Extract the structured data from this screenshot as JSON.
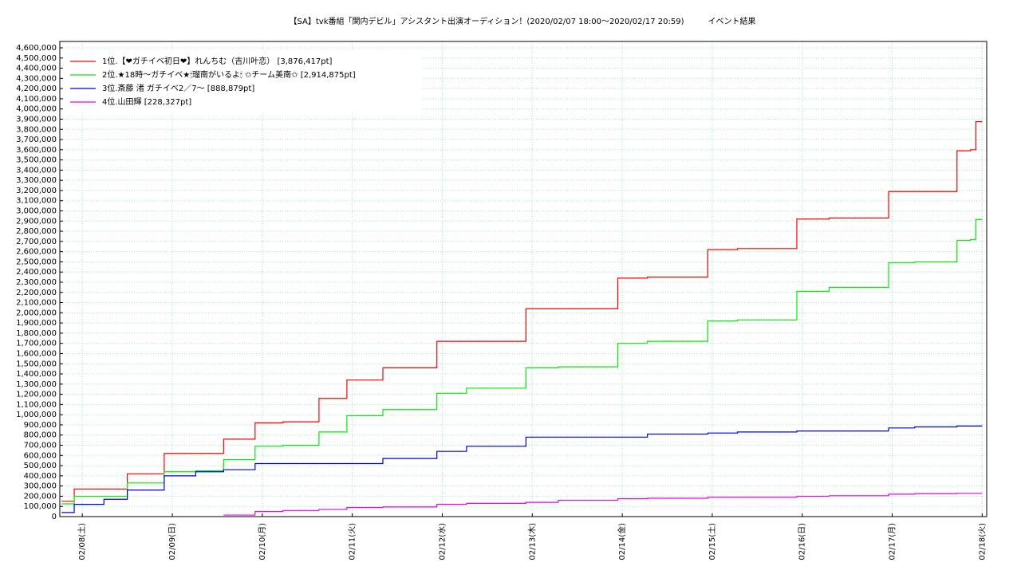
{
  "chart_data": {
    "type": "line",
    "step": true,
    "title": "【SA】tvk番組「関内デビル」アシスタント出演オーディション！(2020/02/07 18:00〜2020/02/17 20:59)　　　イベント結果",
    "x": [
      7.77,
      7.91,
      8.24,
      8.5,
      8.91,
      9.26,
      9.57,
      9.92,
      10.23,
      10.63,
      10.94,
      11.34,
      11.94,
      12.27,
      12.93,
      13.29,
      13.95,
      14.28,
      14.95,
      15.28,
      15.94,
      16.3,
      16.96,
      17.25,
      17.72,
      17.87,
      17.93,
      18.0
    ],
    "series": [
      {
        "name": "1位.【❤ガチイベ初日❤】れんちむ（吉川叶恋） [3,876,417pt]",
        "color": "#ff0000",
        "values": [
          150000,
          270000,
          270000,
          420000,
          620000,
          620000,
          760000,
          920000,
          930000,
          1160000,
          1340000,
          1460000,
          1720000,
          1720000,
          2040000,
          2040000,
          2340000,
          2350000,
          2620000,
          2630000,
          2920000,
          2930000,
          3190000,
          3190000,
          3590000,
          3600000,
          3876417,
          3876417
        ]
      },
      {
        "name": "2位.★18時〜ガチイベ★🕯瑠南がいるよ🕯 ✩チーム美南✩ [2,914,875pt]",
        "color": "#00ee00",
        "values": [
          125000,
          200000,
          200000,
          330000,
          440000,
          450000,
          560000,
          690000,
          700000,
          830000,
          990000,
          1050000,
          1210000,
          1260000,
          1460000,
          1470000,
          1700000,
          1720000,
          1920000,
          1930000,
          2210000,
          2250000,
          2490000,
          2500000,
          2710000,
          2720000,
          2914875,
          2914875
        ]
      },
      {
        "name": "3位.斎藤 渚 ガチイベ2／7〜 [888,879pt]",
        "color": "#0000dd",
        "values": [
          40000,
          120000,
          170000,
          260000,
          400000,
          440000,
          460000,
          520000,
          520000,
          520000,
          520000,
          570000,
          640000,
          690000,
          780000,
          780000,
          780000,
          810000,
          820000,
          830000,
          840000,
          840000,
          870000,
          880000,
          888879,
          888879,
          888879,
          888879
        ]
      },
      {
        "name": "4位.山田輝 [228,327pt]",
        "color": "#ee00ee",
        "values": [
          null,
          null,
          null,
          null,
          null,
          null,
          15000,
          50000,
          60000,
          70000,
          90000,
          95000,
          120000,
          130000,
          140000,
          160000,
          175000,
          180000,
          190000,
          190000,
          200000,
          205000,
          220000,
          225000,
          228327,
          228327,
          228327,
          228327
        ]
      }
    ],
    "xlim": [
      7.75,
      18.05
    ],
    "xticks": [
      {
        "value": 8,
        "label": "02/08(土)"
      },
      {
        "value": 9,
        "label": "02/09(日)"
      },
      {
        "value": 10,
        "label": "02/10(月)"
      },
      {
        "value": 11,
        "label": "02/11(火)"
      },
      {
        "value": 12,
        "label": "02/12(水)"
      },
      {
        "value": 13,
        "label": "02/13(木)"
      },
      {
        "value": 14,
        "label": "02/14(金)"
      },
      {
        "value": 15,
        "label": "02/15(土)"
      },
      {
        "value": 16,
        "label": "02/16(日)"
      },
      {
        "value": 17,
        "label": "02/17(月)"
      },
      {
        "value": 18,
        "label": "02/18(火)"
      }
    ],
    "ylim": [
      0,
      4662500
    ],
    "yticks": [
      0,
      {
        "value": 100000,
        "label": "100,000"
      },
      {
        "value": 200000,
        "label": "200,000"
      },
      {
        "value": 300000,
        "label": "300,000"
      },
      {
        "value": 400000,
        "label": "400,000"
      },
      {
        "value": 500000,
        "label": "500,000"
      },
      {
        "value": 600000,
        "label": "600,000"
      },
      {
        "value": 700000,
        "label": "700,000"
      },
      {
        "value": 800000,
        "label": "800,000"
      },
      {
        "value": 900000,
        "label": "900,000"
      },
      {
        "value": 1000000,
        "label": "1,000,000"
      },
      {
        "value": 1100000,
        "label": "1,100,000"
      },
      {
        "value": 1200000,
        "label": "1,200,000"
      },
      {
        "value": 1300000,
        "label": "1,300,000"
      },
      {
        "value": 1400000,
        "label": "1,400,000"
      },
      {
        "value": 1500000,
        "label": "1,500,000"
      },
      {
        "value": 1600000,
        "label": "1,600,000"
      },
      {
        "value": 1700000,
        "label": "1,700,000"
      },
      {
        "value": 1800000,
        "label": "1,800,000"
      },
      {
        "value": 1900000,
        "label": "1,900,000"
      },
      {
        "value": 2000000,
        "label": "2,000,000"
      },
      {
        "value": 2100000,
        "label": "2,100,000"
      },
      {
        "value": 2200000,
        "label": "2,200,000"
      },
      {
        "value": 2300000,
        "label": "2,300,000"
      },
      {
        "value": 2400000,
        "label": "2,400,000"
      },
      {
        "value": 2500000,
        "label": "2,500,000"
      },
      {
        "value": 2600000,
        "label": "2,600,000"
      },
      {
        "value": 2700000,
        "label": "2,700,000"
      },
      {
        "value": 2800000,
        "label": "2,800,000"
      },
      {
        "value": 2900000,
        "label": "2,900,000"
      },
      {
        "value": 3000000,
        "label": "3,000,000"
      },
      {
        "value": 3100000,
        "label": "3,100,000"
      },
      {
        "value": 3200000,
        "label": "3,200,000"
      },
      {
        "value": 3300000,
        "label": "3,300,000"
      },
      {
        "value": 3400000,
        "label": "3,400,000"
      },
      {
        "value": 3500000,
        "label": "3,500,000"
      },
      {
        "value": 3600000,
        "label": "3,600,000"
      },
      {
        "value": 3700000,
        "label": "3,700,000"
      },
      {
        "value": 3800000,
        "label": "3,800,000"
      },
      {
        "value": 3900000,
        "label": "3,900,000"
      },
      {
        "value": 4000000,
        "label": "4,000,000"
      },
      {
        "value": 4100000,
        "label": "4,100,000"
      },
      {
        "value": 4200000,
        "label": "4,200,000"
      },
      {
        "value": 4300000,
        "label": "4,300,000"
      },
      {
        "value": 4400000,
        "label": "4,400,000"
      },
      {
        "value": 4500000,
        "label": "4,500,000"
      },
      {
        "value": 4600000,
        "label": "4,600,000"
      }
    ],
    "grid": true,
    "grid_color": "#9de8c8",
    "legend": "upper left"
  }
}
